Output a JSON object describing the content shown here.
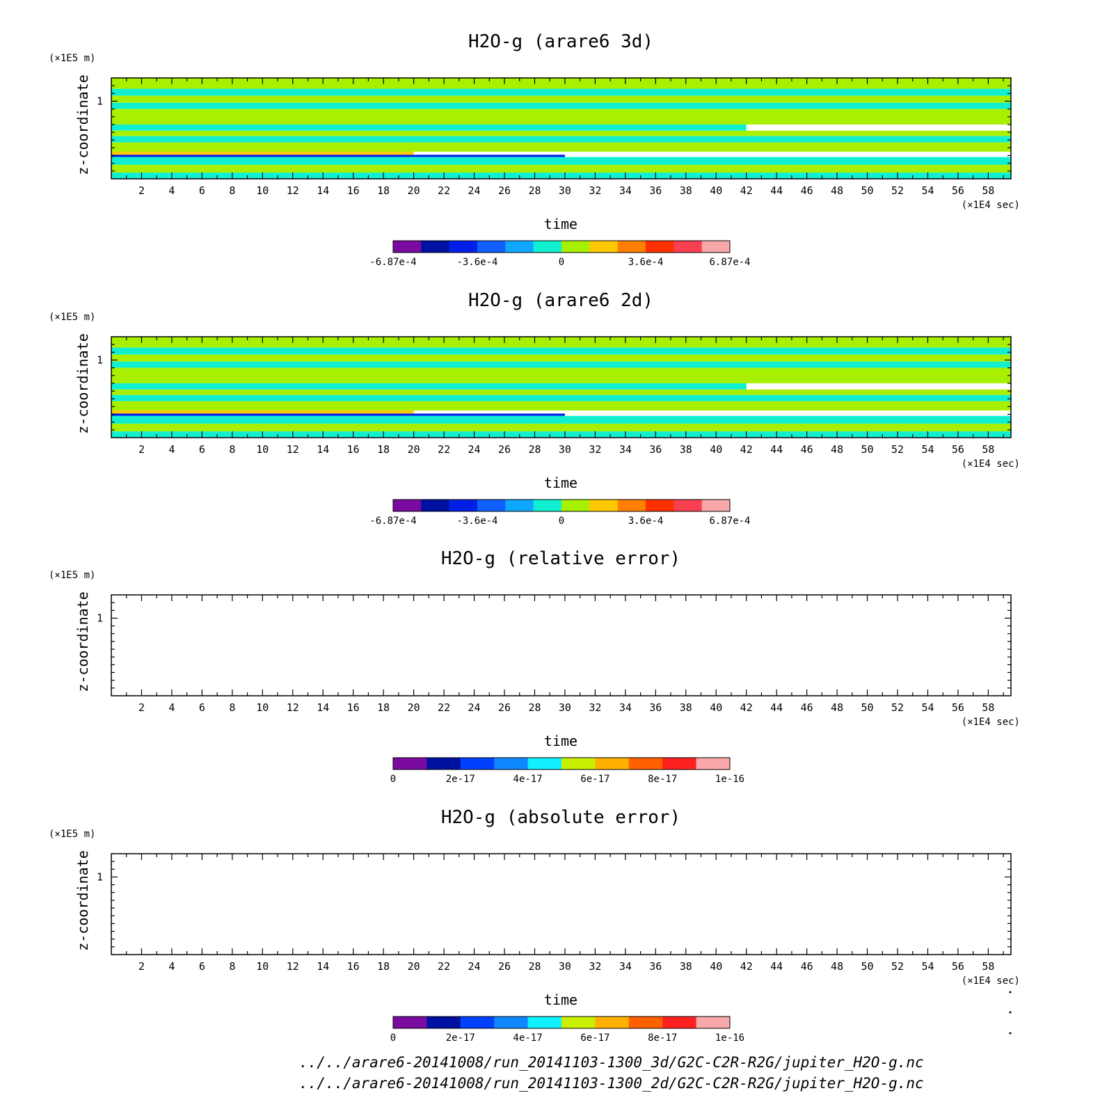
{
  "chart_data": [
    {
      "type": "heatmap",
      "title": "H2O-g (arare6 3d)",
      "xlabel": "time",
      "ylabel": "z-coordinate",
      "x_unit": "(×1E4 sec)",
      "y_unit": "(×1E5 m)",
      "xlim": [
        0,
        59.5
      ],
      "ylim": [
        0,
        1.3
      ],
      "x_ticks": [
        "2",
        "4",
        "6",
        "8",
        "10",
        "12",
        "14",
        "16",
        "18",
        "20",
        "22",
        "24",
        "26",
        "28",
        "30",
        "32",
        "34",
        "36",
        "38",
        "40",
        "42",
        "44",
        "46",
        "48",
        "50",
        "52",
        "54",
        "56",
        "58"
      ],
      "y_ticks": [
        "1"
      ],
      "bands": [
        {
          "z": [
            1.16,
            1.3
          ],
          "level": 6,
          "t_end": 59.5
        },
        {
          "z": [
            1.07,
            1.16
          ],
          "level": 5,
          "t_end": 59.5
        },
        {
          "z": [
            0.98,
            1.07
          ],
          "level": 6,
          "t_end": 59.5
        },
        {
          "z": [
            0.9,
            0.98
          ],
          "level": 5,
          "t_end": 59.5
        },
        {
          "z": [
            0.7,
            0.9
          ],
          "level": 6,
          "t_end": 59.5
        },
        {
          "z": [
            0.62,
            0.7
          ],
          "level": 5,
          "t_end": 42
        },
        {
          "z": [
            0.55,
            0.62
          ],
          "level": 6,
          "t_end": 59.5
        },
        {
          "z": [
            0.47,
            0.55
          ],
          "level": 5,
          "t_end": 59.5
        },
        {
          "z": [
            0.35,
            0.47
          ],
          "level": 6,
          "t_end": 59.5
        },
        {
          "z": [
            0.31,
            0.35
          ],
          "level": 7,
          "t_end": 20
        },
        {
          "z": [
            0.28,
            0.31
          ],
          "level": 2,
          "t_end": 30
        },
        {
          "z": [
            0.18,
            0.28
          ],
          "level": 5,
          "t_end": 59.5
        },
        {
          "z": [
            0.08,
            0.18
          ],
          "level": 6,
          "t_end": 59.5
        },
        {
          "z": [
            0.0,
            0.08
          ],
          "level": 5,
          "t_end": 59.5
        }
      ],
      "colorbar": {
        "colors": [
          "#7a0aa0",
          "#0010a0",
          "#0020e8",
          "#1060ff",
          "#10a8ff",
          "#10f0d0",
          "#a8f000",
          "#ffc800",
          "#ff8000",
          "#ff3000",
          "#f84050",
          "#f8a8a8"
        ],
        "labels": [
          "-6.87e-4",
          "-3.6e-4",
          "0",
          "3.6e-4",
          "6.87e-4"
        ],
        "label_fracs": [
          0,
          0.25,
          0.5,
          0.75,
          1
        ]
      }
    },
    {
      "type": "heatmap",
      "title": "H2O-g (arare6 2d)",
      "xlabel": "time",
      "ylabel": "z-coordinate",
      "x_unit": "(×1E4 sec)",
      "y_unit": "(×1E5 m)",
      "xlim": [
        0,
        59.5
      ],
      "ylim": [
        0,
        1.3
      ],
      "x_ticks": [
        "2",
        "4",
        "6",
        "8",
        "10",
        "12",
        "14",
        "16",
        "18",
        "20",
        "22",
        "24",
        "26",
        "28",
        "30",
        "32",
        "34",
        "36",
        "38",
        "40",
        "42",
        "44",
        "46",
        "48",
        "50",
        "52",
        "54",
        "56",
        "58"
      ],
      "y_ticks": [
        "1"
      ],
      "bands": [
        {
          "z": [
            1.16,
            1.3
          ],
          "level": 6,
          "t_end": 59.5
        },
        {
          "z": [
            1.07,
            1.16
          ],
          "level": 5,
          "t_end": 59.5
        },
        {
          "z": [
            0.98,
            1.07
          ],
          "level": 6,
          "t_end": 59.5
        },
        {
          "z": [
            0.9,
            0.98
          ],
          "level": 5,
          "t_end": 59.5
        },
        {
          "z": [
            0.7,
            0.9
          ],
          "level": 6,
          "t_end": 59.5
        },
        {
          "z": [
            0.62,
            0.7
          ],
          "level": 5,
          "t_end": 42
        },
        {
          "z": [
            0.55,
            0.62
          ],
          "level": 6,
          "t_end": 59.5
        },
        {
          "z": [
            0.47,
            0.55
          ],
          "level": 5,
          "t_end": 59.5
        },
        {
          "z": [
            0.35,
            0.47
          ],
          "level": 6,
          "t_end": 59.5
        },
        {
          "z": [
            0.31,
            0.35
          ],
          "level": 7,
          "t_end": 20
        },
        {
          "z": [
            0.28,
            0.31
          ],
          "level": 2,
          "t_end": 30
        },
        {
          "z": [
            0.18,
            0.28
          ],
          "level": 5,
          "t_end": 59.5
        },
        {
          "z": [
            0.08,
            0.18
          ],
          "level": 6,
          "t_end": 59.5
        },
        {
          "z": [
            0.0,
            0.08
          ],
          "level": 5,
          "t_end": 59.5
        }
      ],
      "colorbar": {
        "colors": [
          "#7a0aa0",
          "#0010a0",
          "#0020e8",
          "#1060ff",
          "#10a8ff",
          "#10f0d0",
          "#a8f000",
          "#ffc800",
          "#ff8000",
          "#ff3000",
          "#f84050",
          "#f8a8a8"
        ],
        "labels": [
          "-6.87e-4",
          "-3.6e-4",
          "0",
          "3.6e-4",
          "6.87e-4"
        ],
        "label_fracs": [
          0,
          0.25,
          0.5,
          0.75,
          1
        ]
      }
    },
    {
      "type": "heatmap",
      "title": "H2O-g (relative error)",
      "xlabel": "time",
      "ylabel": "z-coordinate",
      "x_unit": "(×1E4 sec)",
      "y_unit": "(×1E5 m)",
      "xlim": [
        0,
        59.5
      ],
      "ylim": [
        0,
        1.3
      ],
      "x_ticks": [
        "2",
        "4",
        "6",
        "8",
        "10",
        "12",
        "14",
        "16",
        "18",
        "20",
        "22",
        "24",
        "26",
        "28",
        "30",
        "32",
        "34",
        "36",
        "38",
        "40",
        "42",
        "44",
        "46",
        "48",
        "50",
        "52",
        "54",
        "56",
        "58"
      ],
      "y_ticks": [
        "1"
      ],
      "bands": [],
      "colorbar": {
        "colors": [
          "#7a0aa0",
          "#0010a0",
          "#0040ff",
          "#1088ff",
          "#10f0ff",
          "#c8f000",
          "#ffb000",
          "#ff6000",
          "#ff2020",
          "#f8a8a8"
        ],
        "labels": [
          "0",
          "2e-17",
          "4e-17",
          "6e-17",
          "8e-17",
          "1e-16"
        ],
        "label_fracs": [
          0,
          0.2,
          0.4,
          0.6,
          0.8,
          1
        ]
      }
    },
    {
      "type": "heatmap",
      "title": "H2O-g (absolute error)",
      "xlabel": "time",
      "ylabel": "z-coordinate",
      "x_unit": "(×1E4 sec)",
      "y_unit": "(×1E5 m)",
      "xlim": [
        0,
        59.5
      ],
      "ylim": [
        0,
        1.3
      ],
      "x_ticks": [
        "2",
        "4",
        "6",
        "8",
        "10",
        "12",
        "14",
        "16",
        "18",
        "20",
        "22",
        "24",
        "26",
        "28",
        "30",
        "32",
        "34",
        "36",
        "38",
        "40",
        "42",
        "44",
        "46",
        "48",
        "50",
        "52",
        "54",
        "56",
        "58"
      ],
      "y_ticks": [
        "1"
      ],
      "bands": [],
      "colorbar": {
        "colors": [
          "#7a0aa0",
          "#0010a0",
          "#0040ff",
          "#1088ff",
          "#10f0ff",
          "#c8f000",
          "#ffb000",
          "#ff6000",
          "#ff2020",
          "#f8a8a8"
        ],
        "labels": [
          "0",
          "2e-17",
          "4e-17",
          "6e-17",
          "8e-17",
          "1e-16"
        ],
        "label_fracs": [
          0,
          0.2,
          0.4,
          0.6,
          0.8,
          1
        ]
      }
    }
  ],
  "footer": {
    "path_3d": "../../arare6-20141008/run_20141103-1300_3d/G2C-C2R-R2G/jupiter_H2O-g.nc",
    "path_2d": "../../arare6-20141008/run_20141103-1300_2d/G2C-C2R-R2G/jupiter_H2O-g.nc"
  }
}
